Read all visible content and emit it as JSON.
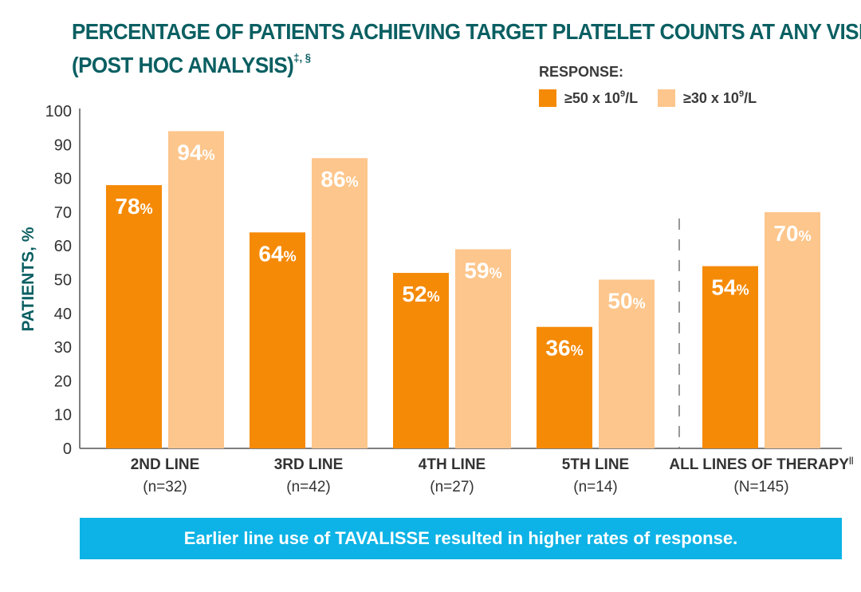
{
  "header": {
    "title_line1": "PERCENTAGE OF PATIENTS ACHIEVING TARGET PLATELET COUNTS AT ANY VISIT",
    "title_line2": "(POST HOC ANALYSIS)",
    "title_superscript": "‡, §"
  },
  "legend": {
    "heading": "RESPONSE:",
    "item1_prefix": "≥50 x 10",
    "item1_exp": "9",
    "item1_suffix": "/L",
    "item2_prefix": "≥30 x 10",
    "item2_exp": "9",
    "item2_suffix": "/L"
  },
  "footer": {
    "banner_text": "Earlier line use of TAVALISSE resulted in higher rates of response."
  },
  "chart_data": {
    "type": "bar",
    "ylabel": "PATIENTS, %",
    "ylim": [
      0,
      100
    ],
    "yticks": [
      0,
      10,
      20,
      30,
      40,
      50,
      60,
      70,
      80,
      90,
      100
    ],
    "categories": [
      "2ND LINE",
      "3RD LINE",
      "4TH LINE",
      "5TH LINE",
      "ALL LINES OF THERAPY"
    ],
    "category_sublabels": [
      "(n=32)",
      "(n=42)",
      "(n=27)",
      "(n=14)",
      "(N=145)"
    ],
    "category_superscripts": [
      "",
      "",
      "",
      "",
      "||"
    ],
    "series": [
      {
        "name": "≥50 x 10⁹/L",
        "color": "#f58a07",
        "values": [
          78,
          64,
          52,
          36,
          54
        ]
      },
      {
        "name": "≥30 x 10⁹/L",
        "color": "#fdc68c",
        "values": [
          94,
          86,
          59,
          50,
          70
        ]
      }
    ],
    "value_suffix": "%",
    "separator_before_last_category": true,
    "grid": false,
    "axis_color": "#555555",
    "text_color": "#333333"
  }
}
